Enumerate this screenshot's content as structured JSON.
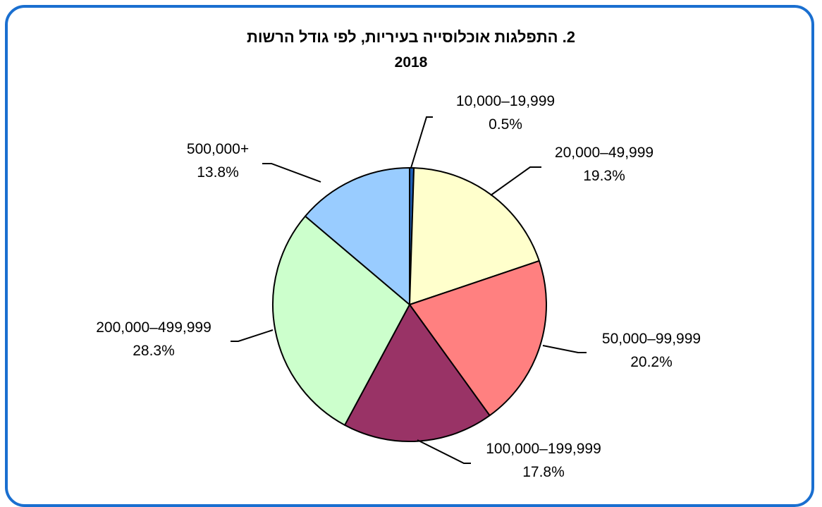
{
  "chart_data": {
    "type": "pie",
    "title": "2. התפלגות אוכלוסייה בעיריות, לפי גודל הרשות",
    "subtitle": "2018",
    "slices": [
      {
        "label": "10,000–19,999",
        "pct": "0.5%",
        "value": 0.5,
        "color": "#1f5fb4"
      },
      {
        "label": "20,000–49,999",
        "pct": "19.3%",
        "value": 19.3,
        "color": "#ffffcc"
      },
      {
        "label": "50,000–99,999",
        "pct": "20.2%",
        "value": 20.2,
        "color": "#ff8080"
      },
      {
        "label": "100,000–199,999",
        "pct": "17.8%",
        "value": 17.8,
        "color": "#993366"
      },
      {
        "label": "200,000–499,999",
        "pct": "28.3%",
        "value": 28.3,
        "color": "#ccffcc"
      },
      {
        "label": "500,000+",
        "pct": "13.8%",
        "value": 13.8,
        "color": "#99ccff"
      }
    ]
  }
}
